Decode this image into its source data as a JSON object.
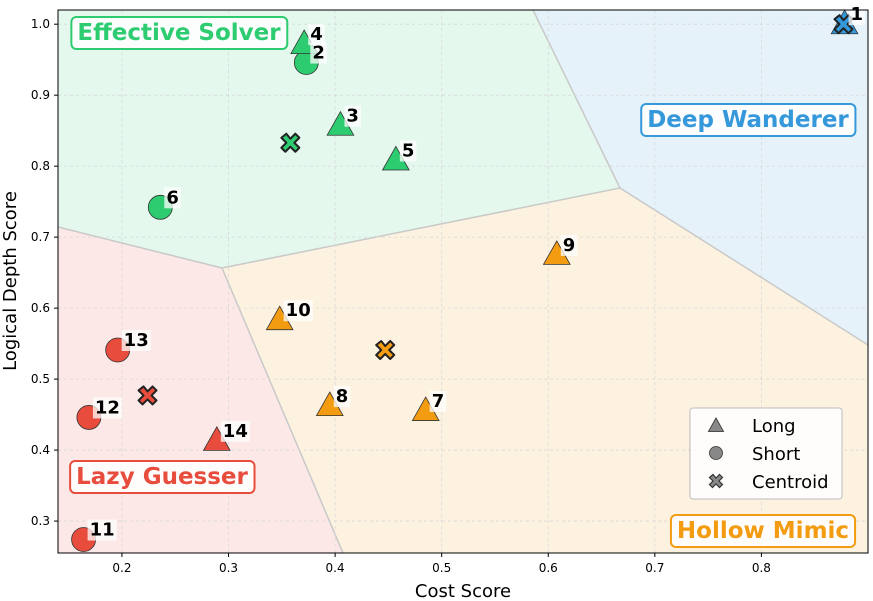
{
  "chart_data": {
    "type": "scatter",
    "xlabel": "Cost Score",
    "ylabel": "Logical Depth Score",
    "xlim": [
      0.14,
      0.9
    ],
    "ylim": [
      0.255,
      1.02
    ],
    "xticks": [
      0.2,
      0.3,
      0.4,
      0.5,
      0.6,
      0.7,
      0.8
    ],
    "yticks": [
      0.3,
      0.4,
      0.5,
      0.6,
      0.7,
      0.8,
      0.9,
      1.0
    ],
    "xtick_labels": [
      "0.2",
      "0.3",
      "0.4",
      "0.5",
      "0.6",
      "0.7",
      "0.8"
    ],
    "ytick_labels": [
      "0.3",
      "0.4",
      "0.5",
      "0.6",
      "0.7",
      "0.8",
      "0.9",
      "1.0"
    ],
    "grid": true,
    "regions": [
      {
        "name": "Effective Solver",
        "color": "#2ecc71"
      },
      {
        "name": "Deep Wanderer",
        "color": "#3498db"
      },
      {
        "name": "Lazy Guesser",
        "color": "#e74c3c"
      },
      {
        "name": "Hollow Mimic",
        "color": "#f39c12"
      }
    ],
    "points": [
      {
        "id": "1",
        "x": 0.878,
        "y": 1.0,
        "shape": "triangle",
        "region": "Deep Wanderer"
      },
      {
        "id": "2",
        "x": 0.373,
        "y": 0.946,
        "shape": "circle",
        "region": "Effective Solver"
      },
      {
        "id": "3",
        "x": 0.405,
        "y": 0.857,
        "shape": "triangle",
        "region": "Effective Solver"
      },
      {
        "id": "4",
        "x": 0.371,
        "y": 0.972,
        "shape": "triangle",
        "region": "Effective Solver"
      },
      {
        "id": "5",
        "x": 0.457,
        "y": 0.808,
        "shape": "triangle",
        "region": "Effective Solver"
      },
      {
        "id": "6",
        "x": 0.236,
        "y": 0.742,
        "shape": "circle",
        "region": "Effective Solver"
      },
      {
        "id": "7",
        "x": 0.485,
        "y": 0.455,
        "shape": "triangle",
        "region": "Hollow Mimic"
      },
      {
        "id": "8",
        "x": 0.395,
        "y": 0.462,
        "shape": "triangle",
        "region": "Hollow Mimic"
      },
      {
        "id": "9",
        "x": 0.608,
        "y": 0.675,
        "shape": "triangle",
        "region": "Hollow Mimic"
      },
      {
        "id": "10",
        "x": 0.348,
        "y": 0.583,
        "shape": "triangle",
        "region": "Hollow Mimic"
      },
      {
        "id": "11",
        "x": 0.164,
        "y": 0.274,
        "shape": "circle",
        "region": "Lazy Guesser"
      },
      {
        "id": "12",
        "x": 0.169,
        "y": 0.446,
        "shape": "circle",
        "region": "Lazy Guesser"
      },
      {
        "id": "13",
        "x": 0.196,
        "y": 0.541,
        "shape": "circle",
        "region": "Lazy Guesser"
      },
      {
        "id": "14",
        "x": 0.289,
        "y": 0.413,
        "shape": "triangle",
        "region": "Lazy Guesser"
      }
    ],
    "centroids": [
      {
        "region": "Effective Solver",
        "x": 0.358,
        "y": 0.833
      },
      {
        "region": "Deep Wanderer",
        "x": 0.877,
        "y": 1.0
      },
      {
        "region": "Lazy Guesser",
        "x": 0.224,
        "y": 0.477
      },
      {
        "region": "Hollow Mimic",
        "x": 0.447,
        "y": 0.541
      }
    ],
    "legend": {
      "placement": "lower-right",
      "entries": [
        {
          "label": "Long",
          "shape": "triangle"
        },
        {
          "label": "Short",
          "shape": "circle"
        },
        {
          "label": "Centroid",
          "shape": "cross"
        }
      ]
    }
  }
}
